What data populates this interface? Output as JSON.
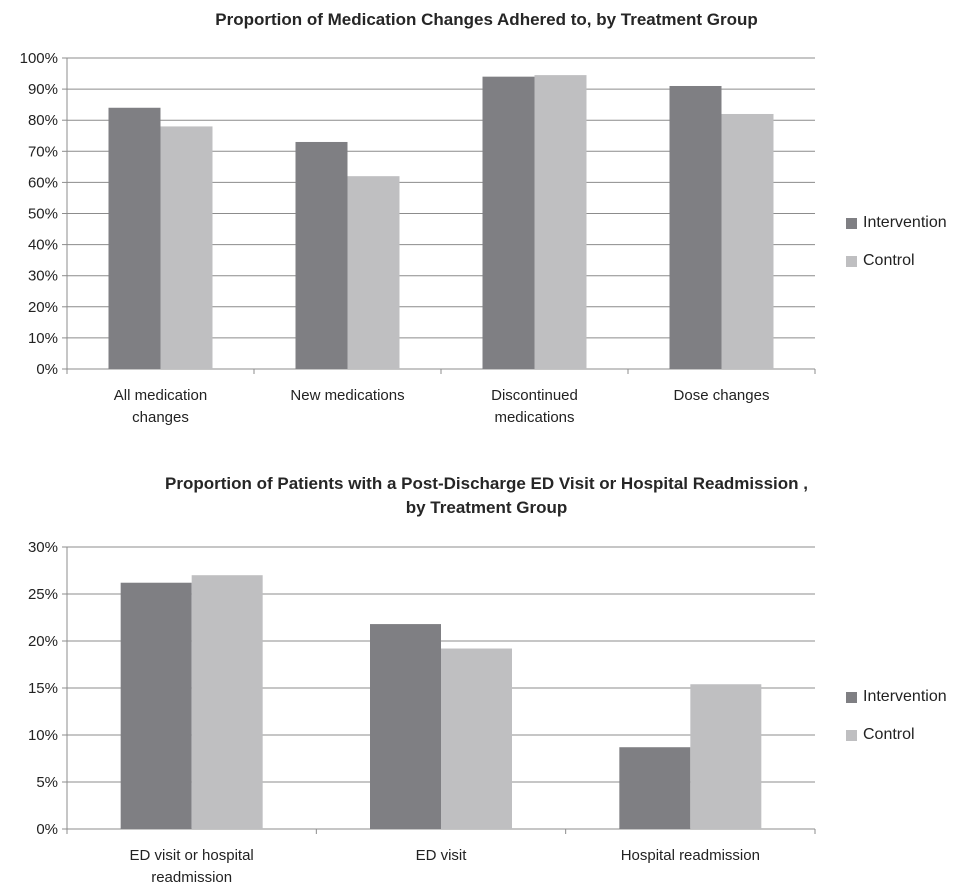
{
  "chart_data": [
    {
      "type": "bar",
      "title": "Proportion of Medication Changes Adhered to, by Treatment Group",
      "categories": [
        [
          "All medication",
          "changes"
        ],
        [
          "New medications"
        ],
        [
          "Discontinued",
          "medications"
        ],
        [
          "Dose changes"
        ]
      ],
      "series": [
        {
          "name": "Intervention",
          "color": "#7f7f83",
          "values": [
            84,
            73,
            94,
            91
          ]
        },
        {
          "name": "Control",
          "color": "#bfbfc1",
          "values": [
            78,
            62,
            94.5,
            82
          ]
        }
      ],
      "y_ticks": [
        "0%",
        "10%",
        "20%",
        "30%",
        "40%",
        "50%",
        "60%",
        "70%",
        "80%",
        "90%",
        "100%"
      ],
      "ylim": [
        0,
        100
      ],
      "grid": true,
      "legend_position": "right"
    },
    {
      "type": "bar",
      "title": "Proportion of Patients with a Post-Discharge ED Visit or Hospital Readmission ,",
      "title_line2": "by Treatment Group",
      "categories": [
        [
          "ED visit or hospital",
          "readmission"
        ],
        [
          "ED visit"
        ],
        [
          "Hospital readmission"
        ]
      ],
      "series": [
        {
          "name": "Intervention",
          "color": "#7f7f83",
          "values": [
            26.2,
            21.8,
            8.7
          ]
        },
        {
          "name": "Control",
          "color": "#bfbfc1",
          "values": [
            27,
            19.2,
            15.4
          ]
        }
      ],
      "y_ticks": [
        "0%",
        "5%",
        "10%",
        "15%",
        "20%",
        "25%",
        "30%"
      ],
      "ylim": [
        0,
        30
      ],
      "grid": true,
      "legend_position": "right"
    }
  ]
}
